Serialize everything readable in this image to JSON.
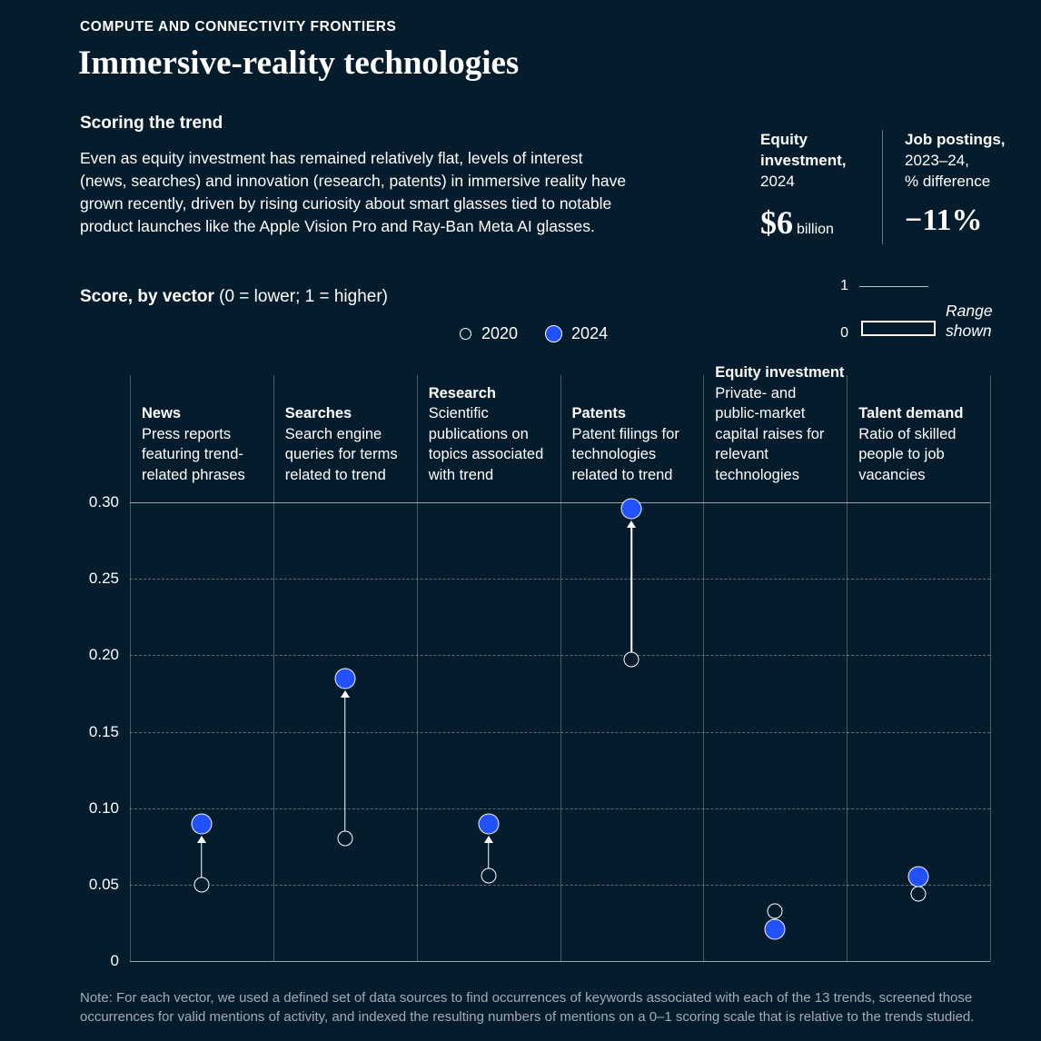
{
  "colors": {
    "background": "#051c2c",
    "dot_2024": "#2251ff",
    "dot_2020_outline": "#ffffff"
  },
  "header": {
    "eyebrow": "COMPUTE AND CONNECTIVITY FRONTIERS",
    "title": "Immersive-reality technologies",
    "section_title": "Scoring the trend",
    "description": "Even as equity investment has remained relatively flat, levels of interest (news, searches) and innovation (research, patents) in immersive reality have grown recently, driven by rising curiosity about smart glasses tied to notable product launches like the Apple Vision Pro and Ray-Ban Meta AI glasses."
  },
  "stats": {
    "equity": {
      "label_bold": "Equity investment,",
      "label_rest": "2024",
      "value": "$6",
      "unit": "billion"
    },
    "jobs": {
      "label_bold": "Job postings,",
      "label_rest": "2023–24,\n% difference",
      "value": "−11%"
    }
  },
  "score_heading": {
    "bold": "Score, by vector",
    "rest": " (0 = lower; 1 = higher)"
  },
  "legend": {
    "year_2020": "2020",
    "year_2024": "2024",
    "range_top": "1",
    "range_bottom": "0",
    "range_label": "Range shown"
  },
  "chart_data": {
    "type": "scatter",
    "title": "Score, by vector (0 = lower; 1 = higher)",
    "ylim": [
      0,
      0.3
    ],
    "yticks": [
      0,
      0.05,
      0.1,
      0.15,
      0.2,
      0.25,
      0.3
    ],
    "yticklabels": [
      "0",
      "0.05",
      "0.10",
      "0.15",
      "0.20",
      "0.25",
      "0.30"
    ],
    "grid": "dashed horizontal gridlines, vertical column separators",
    "legend_position": "top center",
    "series_names": [
      "2020",
      "2024"
    ],
    "categories": [
      {
        "name": "News",
        "desc": "Press reports featuring trend-related phrases",
        "y2020": 0.05,
        "y2024": 0.09,
        "arrow": true
      },
      {
        "name": "Searches",
        "desc": "Search engine queries for terms related to trend",
        "y2020": 0.08,
        "y2024": 0.185,
        "arrow": true
      },
      {
        "name": "Research",
        "desc": "Scientific publications on topics associated with trend",
        "y2020": 0.056,
        "y2024": 0.09,
        "arrow": true
      },
      {
        "name": "Patents",
        "desc": "Patent filings for technologies related to trend",
        "y2020": 0.197,
        "y2024": 0.296,
        "arrow": true
      },
      {
        "name": "Equity investment",
        "desc": "Private- and public-market capital raises for relevant technologies",
        "y2020": 0.033,
        "y2024": 0.021,
        "arrow": false
      },
      {
        "name": "Talent demand",
        "desc": "Ratio of skilled people to job vacancies",
        "y2020": 0.044,
        "y2024": 0.055,
        "arrow": false
      }
    ]
  },
  "note": "Note: For each vector, we used a defined set of data sources to find occurrences of keywords associated with each of the 13 trends, screened those occurrences for valid mentions of activity, and indexed the resulting numbers of mentions on a 0–1 scoring scale that is relative to the trends studied."
}
